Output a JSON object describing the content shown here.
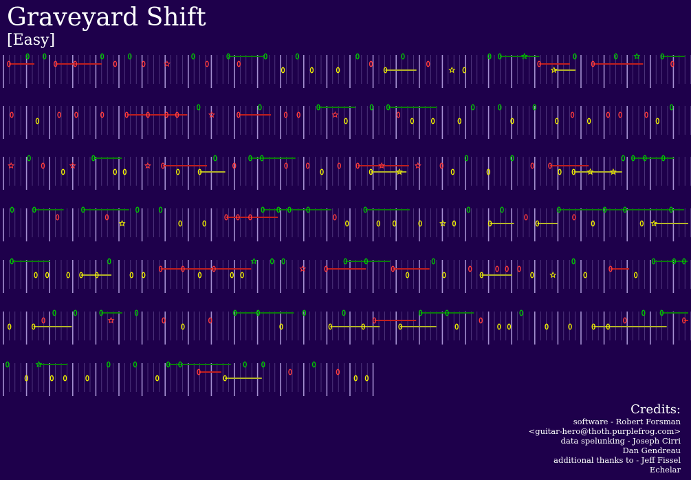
{
  "song": {
    "title": "Graveyard Shift",
    "difficulty": "[Easy]"
  },
  "colors": {
    "background": "#1e004b",
    "beat_line": "#b4a0e0",
    "green": "#00c800",
    "red": "#ff3c3c",
    "yellow": "#f0f000",
    "sustain_green": "#0a7a0a",
    "sustain_red": "#c01e1e",
    "sustain_yellow": "#b4b428"
  },
  "icons": {
    "note": "oval-gem-icon",
    "star_power_note": "star-icon"
  },
  "credits": {
    "heading": "Credits:",
    "lines": [
      "software - Robert Forsman",
      "<guitar-hero@thoth.purplefrog.com>",
      "data spelunking - Joseph Cirri",
      "Dan Gendreau",
      "additional thanks to - Jeff Fissel",
      "Echelar"
    ]
  }
}
